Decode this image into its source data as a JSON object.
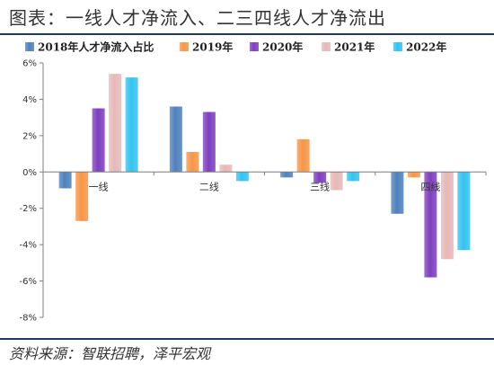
{
  "title": "图表：一线人才净流入、二三四线人才净流出",
  "source": "资料来源：智联招聘，泽平宏观",
  "chart_data": {
    "type": "bar",
    "categories": [
      "一线",
      "二线",
      "三线",
      "四线"
    ],
    "ylim": [
      -8,
      6
    ],
    "yticks": [
      "-8%",
      "-6%",
      "-4%",
      "-2%",
      "0%",
      "2%",
      "4%",
      "6%"
    ],
    "legend_position": "top",
    "grid": false,
    "series": [
      {
        "name": "2018年人才净流入占比",
        "color": "#4f81bd",
        "values": [
          -0.9,
          3.6,
          -0.3,
          -2.3
        ]
      },
      {
        "name": "2019年",
        "color": "#f79646",
        "values": [
          -2.7,
          1.1,
          1.8,
          -0.3
        ]
      },
      {
        "name": "2020年",
        "color": "#7e3fbf",
        "values": [
          3.5,
          3.3,
          -0.6,
          -5.8
        ]
      },
      {
        "name": "2021年",
        "color": "#e6b9b8",
        "values": [
          5.4,
          0.4,
          -1.0,
          -4.8
        ]
      },
      {
        "name": "2022年",
        "color": "#33c3f0",
        "values": [
          5.2,
          -0.5,
          -0.5,
          -4.3
        ]
      }
    ]
  }
}
